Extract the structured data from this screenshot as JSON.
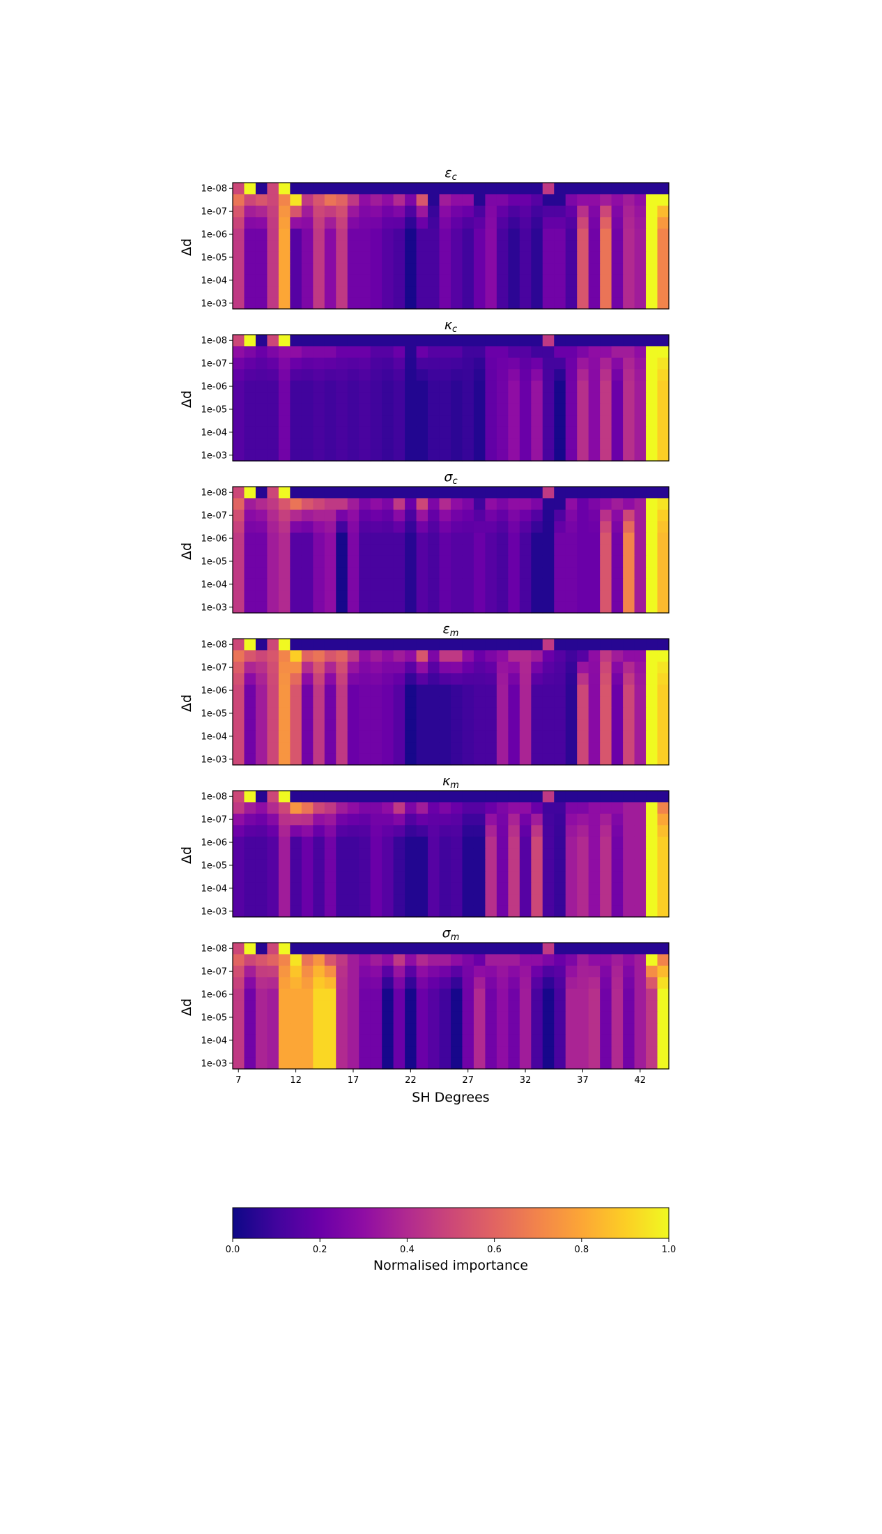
{
  "chart_data": {
    "type": "heatmap",
    "colormap": "plasma",
    "x": {
      "label": "SH Degrees",
      "tick_labels": [
        "7",
        "12",
        "17",
        "22",
        "27",
        "32",
        "37",
        "42"
      ],
      "tick_values": [
        7,
        12,
        17,
        22,
        27,
        32,
        37,
        42
      ],
      "start": 7,
      "end": 44
    },
    "y": {
      "label": "Δd",
      "row_labels": [
        "1e-08",
        "1e-07",
        "1e-06",
        "1e-05",
        "1e-04",
        "1e-03"
      ],
      "rows": 11
    },
    "colorbar": {
      "label": "Normalised importance",
      "range": [
        0.0,
        1.0
      ],
      "tick_labels": [
        "0.0",
        "0.2",
        "0.4",
        "0.6",
        "0.8",
        "1.0"
      ]
    },
    "panels": [
      {
        "title_symbol": "ε",
        "title_sub": "c",
        "first_row": [
          0.5,
          1,
          0.05,
          0.5,
          1,
          0.05,
          0.05,
          0.05,
          0.05,
          0.05,
          0.05,
          0.05,
          0.05,
          0.05,
          0.05,
          0.05,
          0.05,
          0.05,
          0.05,
          0.05,
          0.05,
          0.05,
          0.05,
          0.05,
          0.05,
          0.05,
          0.05,
          0.45,
          0.05,
          0.05,
          0.05,
          0.05,
          0.05,
          0.05,
          0.05,
          0.05,
          0.05,
          0.05
        ],
        "second_row": [
          0.65,
          0.5,
          0.55,
          0.5,
          0.7,
          0.95,
          0.45,
          0.55,
          0.65,
          0.6,
          0.45,
          0.3,
          0.35,
          0.3,
          0.4,
          0.25,
          0.55,
          0.05,
          0.35,
          0.3,
          0.3,
          0.05,
          0.25,
          0.25,
          0.2,
          0.2,
          0.15,
          0.05,
          0.05,
          0.25,
          0.3,
          0.3,
          0.35,
          0.3,
          0.35,
          0.3,
          1,
          1
        ],
        "body": [
          0.45,
          0.22,
          0.22,
          0.45,
          0.8,
          0.15,
          0.25,
          0.45,
          0.28,
          0.45,
          0.22,
          0.22,
          0.2,
          0.15,
          0.12,
          0.02,
          0.12,
          0.12,
          0.22,
          0.15,
          0.1,
          0.2,
          0.28,
          0.12,
          0.06,
          0.12,
          0.06,
          0.22,
          0.22,
          0.12,
          0.55,
          0.22,
          0.65,
          0.22,
          0.4,
          0.35,
          1,
          0.7
        ]
      },
      {
        "title_symbol": "κ",
        "title_sub": "c",
        "first_row": [
          0.5,
          1,
          0.05,
          0.5,
          1,
          0.05,
          0.05,
          0.05,
          0.05,
          0.05,
          0.05,
          0.05,
          0.05,
          0.05,
          0.05,
          0.05,
          0.05,
          0.05,
          0.05,
          0.05,
          0.05,
          0.05,
          0.05,
          0.05,
          0.05,
          0.05,
          0.05,
          0.45,
          0.05,
          0.05,
          0.05,
          0.05,
          0.05,
          0.05,
          0.05,
          0.05,
          0.05,
          0.05
        ],
        "second_row": [
          0.3,
          0.25,
          0.2,
          0.25,
          0.3,
          0.3,
          0.25,
          0.25,
          0.25,
          0.2,
          0.2,
          0.2,
          0.15,
          0.15,
          0.2,
          0.05,
          0.2,
          0.15,
          0.15,
          0.15,
          0.1,
          0.1,
          0.2,
          0.2,
          0.15,
          0.15,
          0.1,
          0.1,
          0.2,
          0.2,
          0.25,
          0.3,
          0.3,
          0.35,
          0.35,
          0.3,
          1,
          1
        ],
        "body": [
          0.15,
          0.12,
          0.12,
          0.12,
          0.22,
          0.1,
          0.1,
          0.12,
          0.1,
          0.12,
          0.1,
          0.12,
          0.1,
          0.08,
          0.1,
          0.04,
          0.04,
          0.08,
          0.08,
          0.06,
          0.08,
          0.04,
          0.18,
          0.22,
          0.3,
          0.2,
          0.32,
          0.12,
          0.02,
          0.22,
          0.42,
          0.28,
          0.45,
          0.2,
          0.42,
          0.35,
          1,
          0.9
        ]
      },
      {
        "title_symbol": "σ",
        "title_sub": "c",
        "first_row": [
          0.5,
          1,
          0.05,
          0.5,
          1,
          0.05,
          0.05,
          0.05,
          0.05,
          0.05,
          0.05,
          0.05,
          0.05,
          0.05,
          0.05,
          0.05,
          0.05,
          0.05,
          0.05,
          0.05,
          0.05,
          0.05,
          0.05,
          0.05,
          0.05,
          0.05,
          0.05,
          0.45,
          0.05,
          0.05,
          0.05,
          0.05,
          0.05,
          0.05,
          0.05,
          0.05,
          0.05,
          0.05
        ],
        "second_row": [
          0.6,
          0.35,
          0.4,
          0.45,
          0.55,
          0.65,
          0.55,
          0.5,
          0.45,
          0.45,
          0.35,
          0.25,
          0.3,
          0.25,
          0.45,
          0.2,
          0.5,
          0.25,
          0.4,
          0.3,
          0.25,
          0.1,
          0.3,
          0.25,
          0.3,
          0.3,
          0.25,
          0.05,
          0.05,
          0.3,
          0.2,
          0.25,
          0.3,
          0.35,
          0.3,
          0.35,
          1,
          0.95
        ],
        "body": [
          0.45,
          0.22,
          0.22,
          0.35,
          0.4,
          0.15,
          0.15,
          0.25,
          0.3,
          0.02,
          0.25,
          0.12,
          0.12,
          0.12,
          0.12,
          0.05,
          0.15,
          0.12,
          0.18,
          0.15,
          0.15,
          0.2,
          0.15,
          0.12,
          0.2,
          0.12,
          0.04,
          0.04,
          0.22,
          0.22,
          0.2,
          0.2,
          0.55,
          0.22,
          0.7,
          0.35,
          1,
          0.85
        ]
      },
      {
        "title_symbol": "ε",
        "title_sub": "m",
        "first_row": [
          0.5,
          1,
          0.05,
          0.5,
          1,
          0.05,
          0.05,
          0.05,
          0.05,
          0.05,
          0.05,
          0.05,
          0.05,
          0.05,
          0.05,
          0.05,
          0.05,
          0.05,
          0.05,
          0.05,
          0.05,
          0.05,
          0.05,
          0.05,
          0.05,
          0.05,
          0.05,
          0.45,
          0.05,
          0.05,
          0.05,
          0.05,
          0.05,
          0.05,
          0.05,
          0.05,
          0.05,
          0.05
        ],
        "second_row": [
          0.65,
          0.55,
          0.5,
          0.55,
          0.7,
          0.9,
          0.6,
          0.65,
          0.55,
          0.6,
          0.45,
          0.3,
          0.35,
          0.3,
          0.35,
          0.3,
          0.55,
          0.25,
          0.45,
          0.45,
          0.3,
          0.2,
          0.25,
          0.3,
          0.4,
          0.4,
          0.35,
          0.2,
          0.15,
          0.1,
          0.15,
          0.3,
          0.45,
          0.35,
          0.3,
          0.3,
          1,
          1
        ],
        "body": [
          0.5,
          0.22,
          0.35,
          0.5,
          0.75,
          0.55,
          0.22,
          0.45,
          0.22,
          0.45,
          0.2,
          0.22,
          0.22,
          0.2,
          0.15,
          0.02,
          0.06,
          0.06,
          0.06,
          0.08,
          0.1,
          0.12,
          0.12,
          0.35,
          0.2,
          0.38,
          0.12,
          0.12,
          0.12,
          0.06,
          0.5,
          0.28,
          0.55,
          0.2,
          0.5,
          0.35,
          1,
          0.9
        ]
      },
      {
        "title_symbol": "κ",
        "title_sub": "m",
        "first_row": [
          0.5,
          1,
          0.05,
          0.5,
          1,
          0.05,
          0.05,
          0.05,
          0.05,
          0.05,
          0.05,
          0.05,
          0.05,
          0.05,
          0.05,
          0.05,
          0.05,
          0.05,
          0.05,
          0.05,
          0.05,
          0.05,
          0.05,
          0.05,
          0.05,
          0.05,
          0.05,
          0.45,
          0.05,
          0.05,
          0.05,
          0.05,
          0.05,
          0.05,
          0.05,
          0.05,
          0.05,
          0.05
        ],
        "second_row": [
          0.45,
          0.35,
          0.3,
          0.4,
          0.5,
          0.75,
          0.65,
          0.5,
          0.45,
          0.35,
          0.3,
          0.25,
          0.25,
          0.3,
          0.45,
          0.25,
          0.35,
          0.2,
          0.25,
          0.2,
          0.15,
          0.15,
          0.2,
          0.25,
          0.3,
          0.3,
          0.2,
          0.1,
          0.1,
          0.25,
          0.25,
          0.3,
          0.3,
          0.3,
          0.35,
          0.35,
          1,
          0.7
        ],
        "body": [
          0.15,
          0.12,
          0.12,
          0.15,
          0.35,
          0.12,
          0.2,
          0.12,
          0.22,
          0.1,
          0.1,
          0.12,
          0.2,
          0.15,
          0.08,
          0.04,
          0.04,
          0.15,
          0.1,
          0.12,
          0.04,
          0.04,
          0.42,
          0.22,
          0.45,
          0.15,
          0.5,
          0.12,
          0.08,
          0.35,
          0.4,
          0.3,
          0.42,
          0.22,
          0.35,
          0.35,
          1,
          0.9
        ]
      },
      {
        "title_symbol": "σ",
        "title_sub": "m",
        "first_row": [
          0.5,
          1,
          0.05,
          0.5,
          1,
          0.05,
          0.05,
          0.05,
          0.05,
          0.05,
          0.05,
          0.05,
          0.05,
          0.05,
          0.05,
          0.05,
          0.05,
          0.05,
          0.05,
          0.05,
          0.05,
          0.05,
          0.05,
          0.05,
          0.05,
          0.05,
          0.05,
          0.45,
          0.05,
          0.05,
          0.05,
          0.05,
          0.05,
          0.05,
          0.05,
          0.05,
          0.05,
          0.05
        ],
        "second_row": [
          0.6,
          0.5,
          0.55,
          0.6,
          0.7,
          0.95,
          0.65,
          0.75,
          0.55,
          0.45,
          0.35,
          0.3,
          0.35,
          0.3,
          0.45,
          0.3,
          0.4,
          0.35,
          0.35,
          0.3,
          0.25,
          0.2,
          0.35,
          0.35,
          0.35,
          0.3,
          0.3,
          0.25,
          0.2,
          0.25,
          0.35,
          0.3,
          0.3,
          0.35,
          0.3,
          0.35,
          1,
          0.7
        ],
        "body": [
          0.45,
          0.22,
          0.38,
          0.35,
          0.8,
          0.8,
          0.8,
          0.92,
          0.92,
          0.4,
          0.35,
          0.22,
          0.22,
          0.02,
          0.2,
          0.02,
          0.2,
          0.15,
          0.1,
          0.02,
          0.22,
          0.4,
          0.22,
          0.3,
          0.22,
          0.35,
          0.12,
          0.02,
          0.12,
          0.38,
          0.38,
          0.42,
          0.22,
          0.4,
          0.22,
          0.35,
          0.45,
          1
        ]
      }
    ]
  }
}
